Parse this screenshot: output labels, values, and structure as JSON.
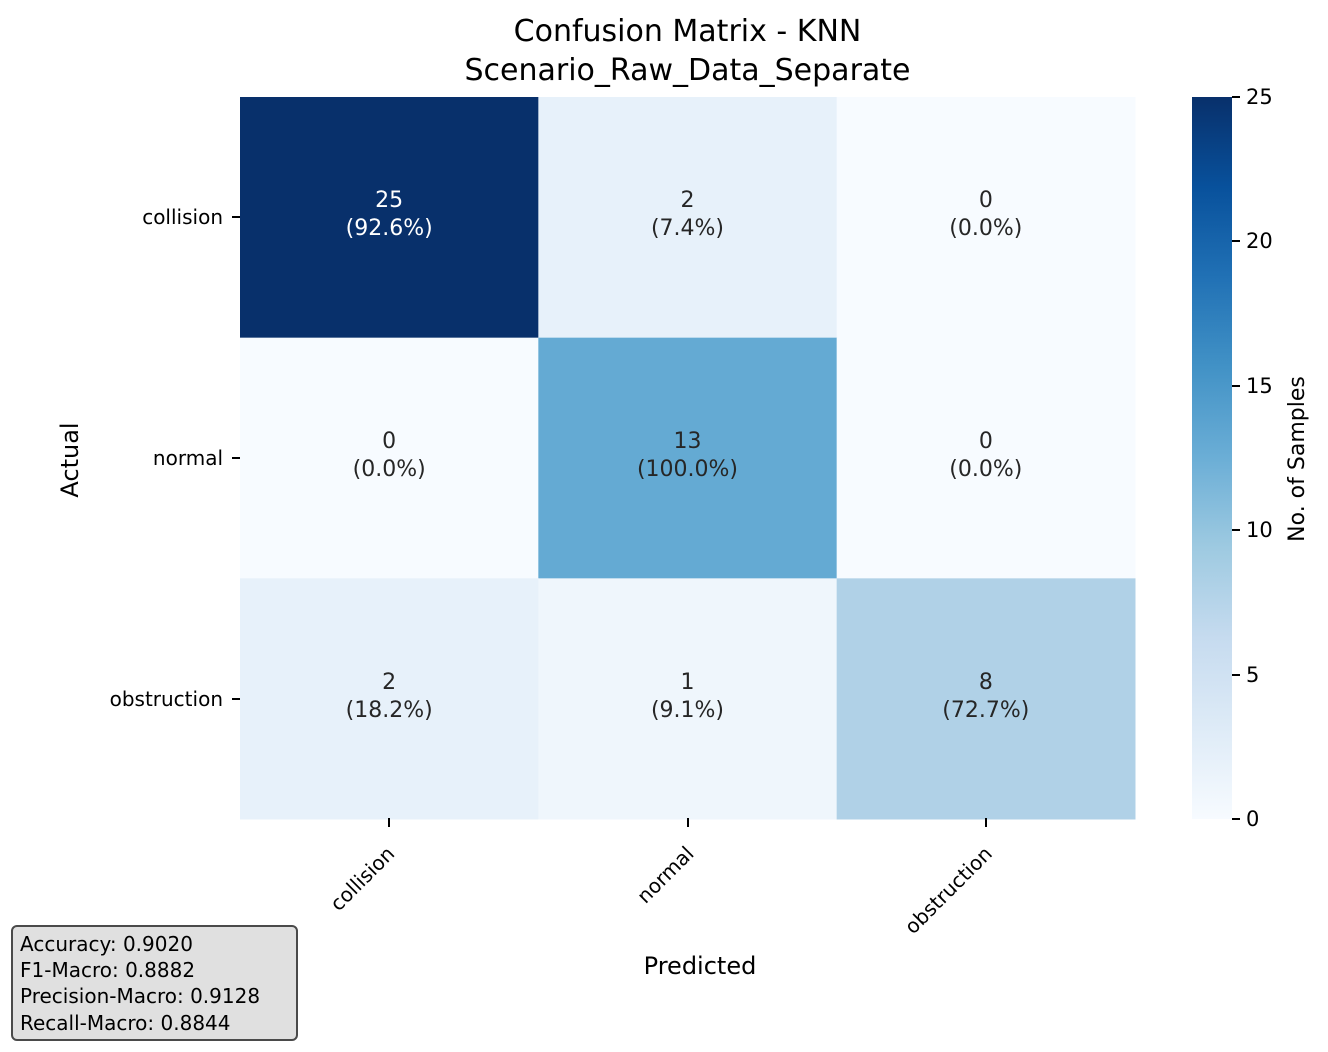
{
  "chart_data": {
    "type": "heatmap",
    "title_line1": "Confusion Matrix - KNN",
    "title_line2": "Scenario_Raw_Data_Separate",
    "xlabel": "Predicted",
    "ylabel": "Actual",
    "x_categories": [
      "collision",
      "normal",
      "obstruction"
    ],
    "y_categories": [
      "collision",
      "normal",
      "obstruction"
    ],
    "values": [
      [
        25,
        2,
        0
      ],
      [
        0,
        13,
        0
      ],
      [
        2,
        1,
        8
      ]
    ],
    "percent_labels": [
      [
        "(92.6%)",
        "(7.4%)",
        "(0.0%)"
      ],
      [
        "(0.0%)",
        "(100.0%)",
        "(0.0%)"
      ],
      [
        "(18.2%)",
        "(9.1%)",
        "(72.7%)"
      ]
    ],
    "colormap": "Blues",
    "vmin": 0,
    "vmax": 25,
    "colorbar_label": "No. of Samples",
    "colorbar_ticks": [
      "0",
      "5",
      "10",
      "15",
      "20",
      "25"
    ],
    "metrics": {
      "accuracy": "Accuracy: 0.9020",
      "f1_macro": "F1-Macro: 0.8882",
      "precision_macro": "Precision-Macro: 0.9128",
      "recall_macro": "Recall-Macro: 0.8844"
    }
  }
}
